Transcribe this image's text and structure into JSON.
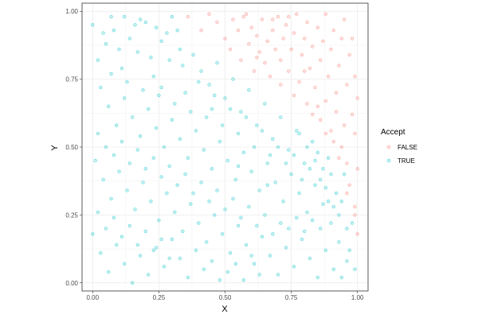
{
  "chart_data": {
    "type": "scatter",
    "title": "",
    "xlabel": "X",
    "ylabel": "Y",
    "xlim": [
      -0.04,
      1.04
    ],
    "ylim": [
      -0.03,
      1.03
    ],
    "xticks": [
      0,
      0.25,
      0.5,
      0.75,
      1
    ],
    "xtick_labels": [
      "0.00",
      "0.25",
      "0.50",
      "0.75",
      "1.00"
    ],
    "yticks": [
      0,
      0.25,
      0.5,
      0.75,
      1
    ],
    "ytick_labels": [
      "0.00",
      "0.25",
      "0.50",
      "0.75",
      "1.00"
    ],
    "grid": true,
    "legend": {
      "title": "Accept",
      "position": "right"
    },
    "series": [
      {
        "name": "FALSE",
        "color": "#F8766D",
        "points": [
          [
            0.36,
            0.98
          ],
          [
            0.41,
            0.93
          ],
          [
            0.44,
            0.99
          ],
          [
            0.47,
            0.96
          ],
          [
            0.5,
            0.9
          ],
          [
            0.52,
            0.86
          ],
          [
            0.53,
            0.97
          ],
          [
            0.55,
            0.93
          ],
          [
            0.56,
            0.82
          ],
          [
            0.58,
            0.99
          ],
          [
            0.59,
            0.88
          ],
          [
            0.6,
            0.94
          ],
          [
            0.61,
            0.78
          ],
          [
            0.62,
            0.91
          ],
          [
            0.63,
            0.85
          ],
          [
            0.64,
            0.97
          ],
          [
            0.65,
            0.81
          ],
          [
            0.66,
            0.89
          ],
          [
            0.67,
            0.76
          ],
          [
            0.68,
            0.93
          ],
          [
            0.69,
            0.86
          ],
          [
            0.7,
            0.98
          ],
          [
            0.71,
            0.73
          ],
          [
            0.71,
            0.82
          ],
          [
            0.72,
            0.9
          ],
          [
            0.73,
            0.95
          ],
          [
            0.74,
            0.78
          ],
          [
            0.75,
            0.86
          ],
          [
            0.76,
            0.69
          ],
          [
            0.76,
            0.92
          ],
          [
            0.77,
            0.99
          ],
          [
            0.78,
            0.74
          ],
          [
            0.79,
            0.84
          ],
          [
            0.8,
            0.9
          ],
          [
            0.81,
            0.66
          ],
          [
            0.81,
            0.96
          ],
          [
            0.82,
            0.79
          ],
          [
            0.83,
            0.87
          ],
          [
            0.84,
            0.72
          ],
          [
            0.85,
            0.94
          ],
          [
            0.86,
            0.6
          ],
          [
            0.86,
            0.82
          ],
          [
            0.87,
            0.89
          ],
          [
            0.88,
            0.67
          ],
          [
            0.88,
            0.99
          ],
          [
            0.89,
            0.76
          ],
          [
            0.9,
            0.56
          ],
          [
            0.9,
            0.86
          ],
          [
            0.91,
            0.93
          ],
          [
            0.92,
            0.63
          ],
          [
            0.92,
            0.7
          ],
          [
            0.93,
            0.8
          ],
          [
            0.94,
            0.5
          ],
          [
            0.94,
            0.9
          ],
          [
            0.95,
            0.58
          ],
          [
            0.95,
            0.97
          ],
          [
            0.96,
            0.44
          ],
          [
            0.96,
            0.73
          ],
          [
            0.97,
            0.84
          ],
          [
            0.97,
            0.36
          ],
          [
            0.98,
            0.62
          ],
          [
            0.98,
            0.9
          ],
          [
            0.99,
            0.28
          ],
          [
            0.99,
            0.55
          ],
          [
            0.99,
            0.76
          ],
          [
            1.0,
            0.18
          ],
          [
            1.0,
            0.42
          ],
          [
            1.0,
            0.68
          ],
          [
            0.88,
            0.55
          ],
          [
            0.93,
            0.46
          ],
          [
            0.57,
            0.98
          ],
          [
            0.62,
            0.83
          ],
          [
            0.74,
            0.98
          ],
          [
            0.8,
            0.78
          ],
          [
            0.85,
            0.65
          ],
          [
            0.91,
            0.52
          ],
          [
            0.96,
            0.33
          ],
          [
            0.99,
            0.25
          ],
          [
            0.83,
            0.62
          ],
          [
            0.68,
            0.97
          ]
        ]
      },
      {
        "name": "TRUE",
        "color": "#00BFC4",
        "points": [
          [
            0.0,
            0.95
          ],
          [
            0.02,
            0.82
          ],
          [
            0.05,
            0.88
          ],
          [
            0.08,
            0.93
          ],
          [
            0.11,
            0.79
          ],
          [
            0.14,
            0.9
          ],
          [
            0.17,
            0.85
          ],
          [
            0.2,
            0.96
          ],
          [
            0.23,
            0.76
          ],
          [
            0.26,
            0.89
          ],
          [
            0.29,
            0.82
          ],
          [
            0.32,
            0.93
          ],
          [
            0.35,
            0.7
          ],
          [
            0.38,
            0.84
          ],
          [
            0.41,
            0.78
          ],
          [
            0.44,
            0.73
          ],
          [
            0.47,
            0.81
          ],
          [
            0.5,
            0.68
          ],
          [
            0.53,
            0.75
          ],
          [
            0.56,
            0.63
          ],
          [
            0.59,
            0.71
          ],
          [
            0.62,
            0.58
          ],
          [
            0.65,
            0.66
          ],
          [
            0.68,
            0.53
          ],
          [
            0.71,
            0.61
          ],
          [
            0.74,
            0.49
          ],
          [
            0.77,
            0.56
          ],
          [
            0.8,
            0.44
          ],
          [
            0.83,
            0.52
          ],
          [
            0.86,
            0.38
          ],
          [
            0.89,
            0.46
          ],
          [
            0.92,
            0.33
          ],
          [
            0.95,
            0.4
          ],
          [
            0.98,
            0.22
          ],
          [
            0.03,
            0.72
          ],
          [
            0.06,
            0.65
          ],
          [
            0.09,
            0.58
          ],
          [
            0.12,
            0.68
          ],
          [
            0.15,
            0.61
          ],
          [
            0.18,
            0.54
          ],
          [
            0.21,
            0.64
          ],
          [
            0.24,
            0.57
          ],
          [
            0.27,
            0.5
          ],
          [
            0.3,
            0.6
          ],
          [
            0.33,
            0.53
          ],
          [
            0.36,
            0.46
          ],
          [
            0.39,
            0.56
          ],
          [
            0.42,
            0.49
          ],
          [
            0.45,
            0.42
          ],
          [
            0.48,
            0.52
          ],
          [
            0.51,
            0.45
          ],
          [
            0.54,
            0.38
          ],
          [
            0.57,
            0.48
          ],
          [
            0.6,
            0.41
          ],
          [
            0.63,
            0.34
          ],
          [
            0.66,
            0.44
          ],
          [
            0.69,
            0.37
          ],
          [
            0.72,
            0.3
          ],
          [
            0.75,
            0.4
          ],
          [
            0.78,
            0.33
          ],
          [
            0.81,
            0.26
          ],
          [
            0.84,
            0.36
          ],
          [
            0.87,
            0.29
          ],
          [
            0.9,
            0.22
          ],
          [
            0.93,
            0.15
          ],
          [
            0.96,
            0.08
          ],
          [
            0.01,
            0.45
          ],
          [
            0.04,
            0.38
          ],
          [
            0.07,
            0.31
          ],
          [
            0.1,
            0.41
          ],
          [
            0.13,
            0.34
          ],
          [
            0.16,
            0.27
          ],
          [
            0.19,
            0.37
          ],
          [
            0.22,
            0.3
          ],
          [
            0.25,
            0.23
          ],
          [
            0.28,
            0.33
          ],
          [
            0.31,
            0.26
          ],
          [
            0.34,
            0.19
          ],
          [
            0.37,
            0.29
          ],
          [
            0.4,
            0.22
          ],
          [
            0.43,
            0.15
          ],
          [
            0.46,
            0.25
          ],
          [
            0.49,
            0.18
          ],
          [
            0.52,
            0.11
          ],
          [
            0.55,
            0.21
          ],
          [
            0.58,
            0.14
          ],
          [
            0.61,
            0.07
          ],
          [
            0.64,
            0.17
          ],
          [
            0.67,
            0.1
          ],
          [
            0.7,
            0.03
          ],
          [
            0.73,
            0.13
          ],
          [
            0.76,
            0.06
          ],
          [
            0.79,
            0.16
          ],
          [
            0.82,
            0.09
          ],
          [
            0.85,
            0.02
          ],
          [
            0.88,
            0.12
          ],
          [
            0.91,
            0.05
          ],
          [
            0.94,
            0.02
          ],
          [
            0.0,
            0.18
          ],
          [
            0.03,
            0.11
          ],
          [
            0.06,
            0.04
          ],
          [
            0.09,
            0.14
          ],
          [
            0.12,
            0.07
          ],
          [
            0.15,
            0.0
          ],
          [
            0.18,
            0.1
          ],
          [
            0.21,
            0.03
          ],
          [
            0.24,
            0.13
          ],
          [
            0.27,
            0.06
          ],
          [
            0.3,
            0.16
          ],
          [
            0.33,
            0.09
          ],
          [
            0.36,
            0.02
          ],
          [
            0.39,
            0.12
          ],
          [
            0.42,
            0.05
          ],
          [
            0.45,
            0.08
          ],
          [
            0.48,
            0.01
          ],
          [
            0.51,
            0.04
          ],
          [
            0.54,
            0.07
          ],
          [
            0.57,
            0.01
          ],
          [
            0.6,
            0.1
          ],
          [
            0.63,
            0.03
          ],
          [
            0.02,
            0.26
          ],
          [
            0.05,
            0.2
          ],
          [
            0.08,
            0.24
          ],
          [
            0.11,
            0.17
          ],
          [
            0.14,
            0.21
          ],
          [
            0.17,
            0.14
          ],
          [
            0.2,
            0.19
          ],
          [
            0.23,
            0.12
          ],
          [
            0.26,
            0.16
          ],
          [
            0.29,
            0.09
          ],
          [
            0.02,
            0.55
          ],
          [
            0.05,
            0.5
          ],
          [
            0.08,
            0.47
          ],
          [
            0.11,
            0.52
          ],
          [
            0.14,
            0.44
          ],
          [
            0.17,
            0.49
          ],
          [
            0.2,
            0.42
          ],
          [
            0.23,
            0.46
          ],
          [
            0.26,
            0.39
          ],
          [
            0.29,
            0.43
          ],
          [
            0.32,
            0.36
          ],
          [
            0.35,
            0.4
          ],
          [
            0.38,
            0.33
          ],
          [
            0.41,
            0.37
          ],
          [
            0.44,
            0.3
          ],
          [
            0.47,
            0.34
          ],
          [
            0.5,
            0.27
          ],
          [
            0.53,
            0.31
          ],
          [
            0.56,
            0.24
          ],
          [
            0.59,
            0.28
          ],
          [
            0.62,
            0.21
          ],
          [
            0.65,
            0.25
          ],
          [
            0.68,
            0.18
          ],
          [
            0.71,
            0.22
          ],
          [
            0.74,
            0.2
          ],
          [
            0.77,
            0.24
          ],
          [
            0.8,
            0.19
          ],
          [
            0.83,
            0.23
          ],
          [
            0.86,
            0.2
          ],
          [
            0.89,
            0.3
          ],
          [
            0.04,
            0.92
          ],
          [
            0.07,
            0.77
          ],
          [
            0.1,
            0.86
          ],
          [
            0.13,
            0.74
          ],
          [
            0.16,
            0.95
          ],
          [
            0.19,
            0.71
          ],
          [
            0.22,
            0.83
          ],
          [
            0.25,
            0.69
          ],
          [
            0.28,
            0.92
          ],
          [
            0.31,
            0.66
          ],
          [
            0.34,
            0.8
          ],
          [
            0.37,
            0.63
          ],
          [
            0.4,
            0.74
          ],
          [
            0.43,
            0.61
          ],
          [
            0.46,
            0.69
          ],
          [
            0.49,
            0.58
          ],
          [
            0.52,
            0.64
          ],
          [
            0.55,
            0.55
          ],
          [
            0.58,
            0.61
          ],
          [
            0.61,
            0.5
          ],
          [
            0.64,
            0.56
          ],
          [
            0.67,
            0.47
          ],
          [
            0.7,
            0.5
          ],
          [
            0.73,
            0.44
          ],
          [
            0.76,
            0.47
          ],
          [
            0.79,
            0.38
          ],
          [
            0.82,
            0.42
          ],
          [
            0.85,
            0.48
          ],
          [
            0.88,
            0.35
          ],
          [
            0.91,
            0.28
          ],
          [
            0.94,
            0.3
          ],
          [
            0.97,
            0.12
          ],
          [
            0.99,
            0.05
          ],
          [
            0.96,
            0.2
          ],
          [
            0.93,
            0.25
          ],
          [
            0.9,
            0.4
          ],
          [
            0.87,
            0.42
          ],
          [
            0.84,
            0.45
          ],
          [
            0.81,
            0.5
          ],
          [
            0.78,
            0.55
          ],
          [
            0.12,
            0.98
          ],
          [
            0.18,
            0.97
          ],
          [
            0.24,
            0.94
          ],
          [
            0.3,
            0.98
          ],
          [
            0.07,
            0.98
          ],
          [
            0.26,
            0.72
          ],
          [
            0.33,
            0.86
          ],
          [
            0.45,
            0.64
          ],
          [
            0.55,
            0.43
          ],
          [
            0.66,
            0.36
          ]
        ]
      }
    ]
  }
}
